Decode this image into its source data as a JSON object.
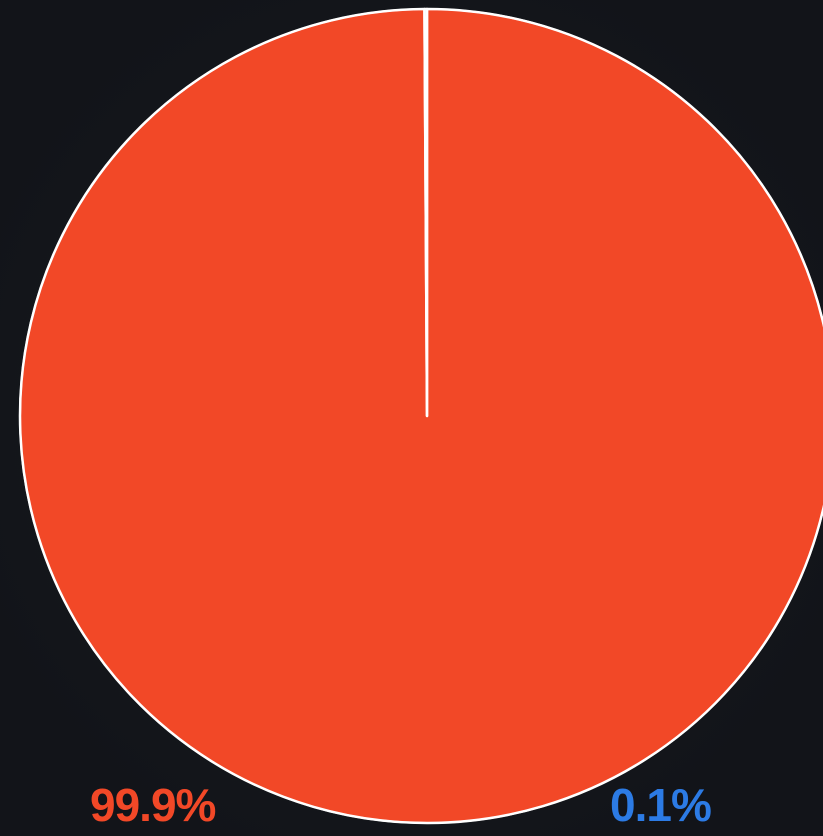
{
  "chart_data": {
    "type": "pie",
    "slices": [
      {
        "value": 99.9,
        "label": "99.9%",
        "color": "#f24827"
      },
      {
        "value": 0.1,
        "label": "0.1%",
        "color": "#2c7be5"
      }
    ],
    "start_angle_deg": 0,
    "direction": "clockwise",
    "border_color": "#ffffff",
    "background": "#14171c"
  }
}
